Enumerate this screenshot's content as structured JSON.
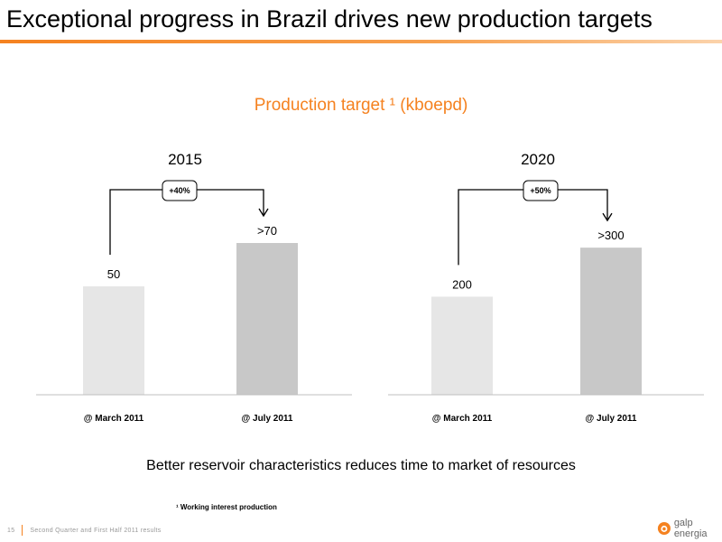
{
  "header": {
    "title": "Exceptional progress in Brazil drives new production targets"
  },
  "colors": {
    "accent": "#f58220",
    "bar_light": "#e6e6e6",
    "bar_dark": "#c8c8c8"
  },
  "chart_data": [
    {
      "type": "bar",
      "title": "2015",
      "categories": [
        "@ March 2011",
        "@ July 2011"
      ],
      "values": [
        50,
        70
      ],
      "value_labels": [
        "50",
        ">70"
      ],
      "change_label": "+40%",
      "ylim": [
        0,
        95
      ]
    },
    {
      "type": "bar",
      "title": "2020",
      "categories": [
        "@ March 2011",
        "@ July 2011"
      ],
      "values": [
        200,
        300
      ],
      "value_labels": [
        "200",
        ">300"
      ],
      "change_label": "+50%",
      "ylim": [
        0,
        420
      ]
    }
  ],
  "main": {
    "subtitle": "Production target ¹ (kboepd)",
    "caption": "Better reservoir characteristics reduces time to market of resources",
    "footnote": "¹ Working interest production"
  },
  "footer": {
    "page_number": "15",
    "text": "Second Quarter and First Half 2011 results",
    "logo_text": "galp energia",
    "logo_icon": "galp-flame-icon"
  }
}
